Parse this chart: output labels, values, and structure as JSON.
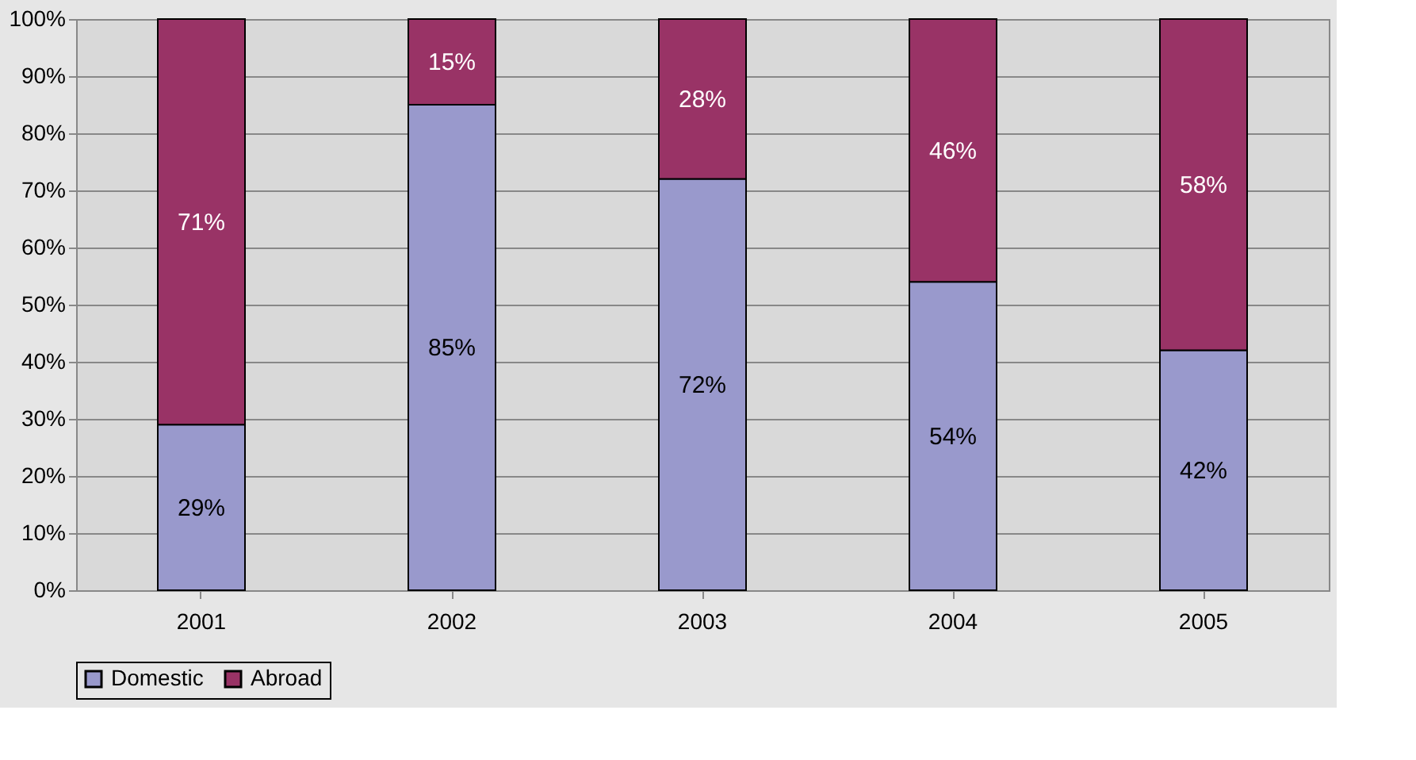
{
  "chart_data": {
    "type": "bar",
    "stacked": true,
    "categories": [
      "2001",
      "2002",
      "2003",
      "2004",
      "2005"
    ],
    "series": [
      {
        "name": "Domestic",
        "color": "#9999cc",
        "values": [
          29,
          85,
          72,
          54,
          42
        ],
        "value_labels": [
          "29%",
          "85%",
          "72%",
          "54%",
          "42%"
        ]
      },
      {
        "name": "Abroad",
        "color": "#993366",
        "values": [
          71,
          15,
          28,
          46,
          58
        ],
        "value_labels": [
          "71%",
          "15%",
          "28%",
          "46%",
          "58%"
        ]
      }
    ],
    "ylim": [
      0,
      100
    ],
    "yticks": [
      {
        "value": 0,
        "label": "0%"
      },
      {
        "value": 10,
        "label": "10%"
      },
      {
        "value": 20,
        "label": "20%"
      },
      {
        "value": 30,
        "label": "30%"
      },
      {
        "value": 40,
        "label": "40%"
      },
      {
        "value": 50,
        "label": "50%"
      },
      {
        "value": 60,
        "label": "60%"
      },
      {
        "value": 70,
        "label": "70%"
      },
      {
        "value": 80,
        "label": "80%"
      },
      {
        "value": 90,
        "label": "90%"
      },
      {
        "value": 100,
        "label": "100%"
      }
    ],
    "grid": "y",
    "legend": "bottom"
  }
}
